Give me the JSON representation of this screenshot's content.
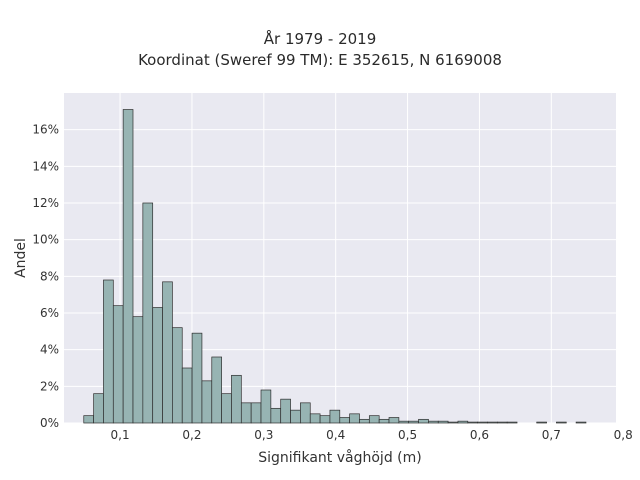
{
  "chart_data": {
    "type": "bar",
    "title_line1": "År 1979 - 2019",
    "title_line2": "Koordinat (Sweref 99 TM): E 352615, N 6169008",
    "xlabel": "Signifikant våghöjd (m)",
    "ylabel": "Andel",
    "xlim": [
      0.022,
      0.79
    ],
    "ylim": [
      0,
      0.18
    ],
    "x_ticks": [
      0.1,
      0.2,
      0.3,
      0.4,
      0.5,
      0.6,
      0.7,
      0.8
    ],
    "x_tick_labels": [
      "0,1",
      "0,2",
      "0,3",
      "0,4",
      "0,5",
      "0,6",
      "0,7",
      "0,8"
    ],
    "y_ticks": [
      0,
      0.02,
      0.04,
      0.06,
      0.08,
      0.1,
      0.12,
      0.14,
      0.16
    ],
    "y_tick_labels": [
      "0%",
      "2%",
      "4%",
      "6%",
      "8%",
      "10%",
      "12%",
      "14%",
      "16%"
    ],
    "grid": true,
    "bin_width": 0.0137,
    "bin_start": 0.0495,
    "values": [
      0.004,
      0.016,
      0.078,
      0.064,
      0.171,
      0.058,
      0.12,
      0.063,
      0.077,
      0.052,
      0.03,
      0.049,
      0.023,
      0.036,
      0.016,
      0.026,
      0.011,
      0.011,
      0.018,
      0.008,
      0.013,
      0.007,
      0.011,
      0.005,
      0.004,
      0.007,
      0.003,
      0.005,
      0.002,
      0.004,
      0.002,
      0.003,
      0.001,
      0.001,
      0.002,
      0.001,
      0.001,
      0.0005,
      0.001,
      0.0005,
      0.0005,
      0.0005,
      0.0005,
      0.0005,
      0.0,
      0.0,
      0.0005,
      0.0,
      0.0005,
      0.0,
      0.0005
    ],
    "colors": {
      "bar_fill": "#97b4b3",
      "bar_edge": "#2e2e2e",
      "plot_bg": "#e9e9f1",
      "grid": "#ffffff"
    }
  }
}
